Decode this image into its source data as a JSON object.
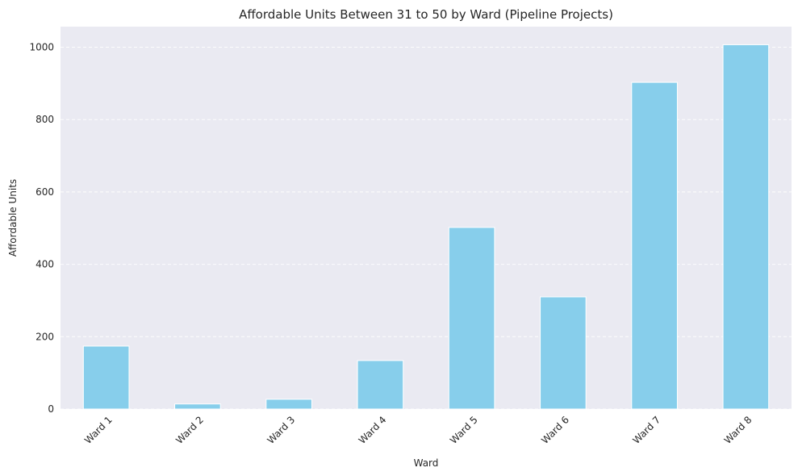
{
  "chart_data": {
    "type": "bar",
    "title": "Affordable Units Between 31 to 50 by Ward (Pipeline Projects)",
    "xlabel": "Ward",
    "ylabel": "Affordable Units",
    "categories": [
      "Ward 1",
      "Ward 2",
      "Ward 3",
      "Ward 4",
      "Ward 5",
      "Ward 6",
      "Ward 7",
      "Ward 8"
    ],
    "values": [
      174,
      14,
      27,
      134,
      502,
      310,
      903,
      1007
    ],
    "ylim": [
      0,
      1057
    ],
    "yticks": [
      0,
      200,
      400,
      600,
      800,
      1000
    ],
    "grid": true,
    "bar_color": "#87ceeb",
    "background_color": "#eaeaf2"
  }
}
